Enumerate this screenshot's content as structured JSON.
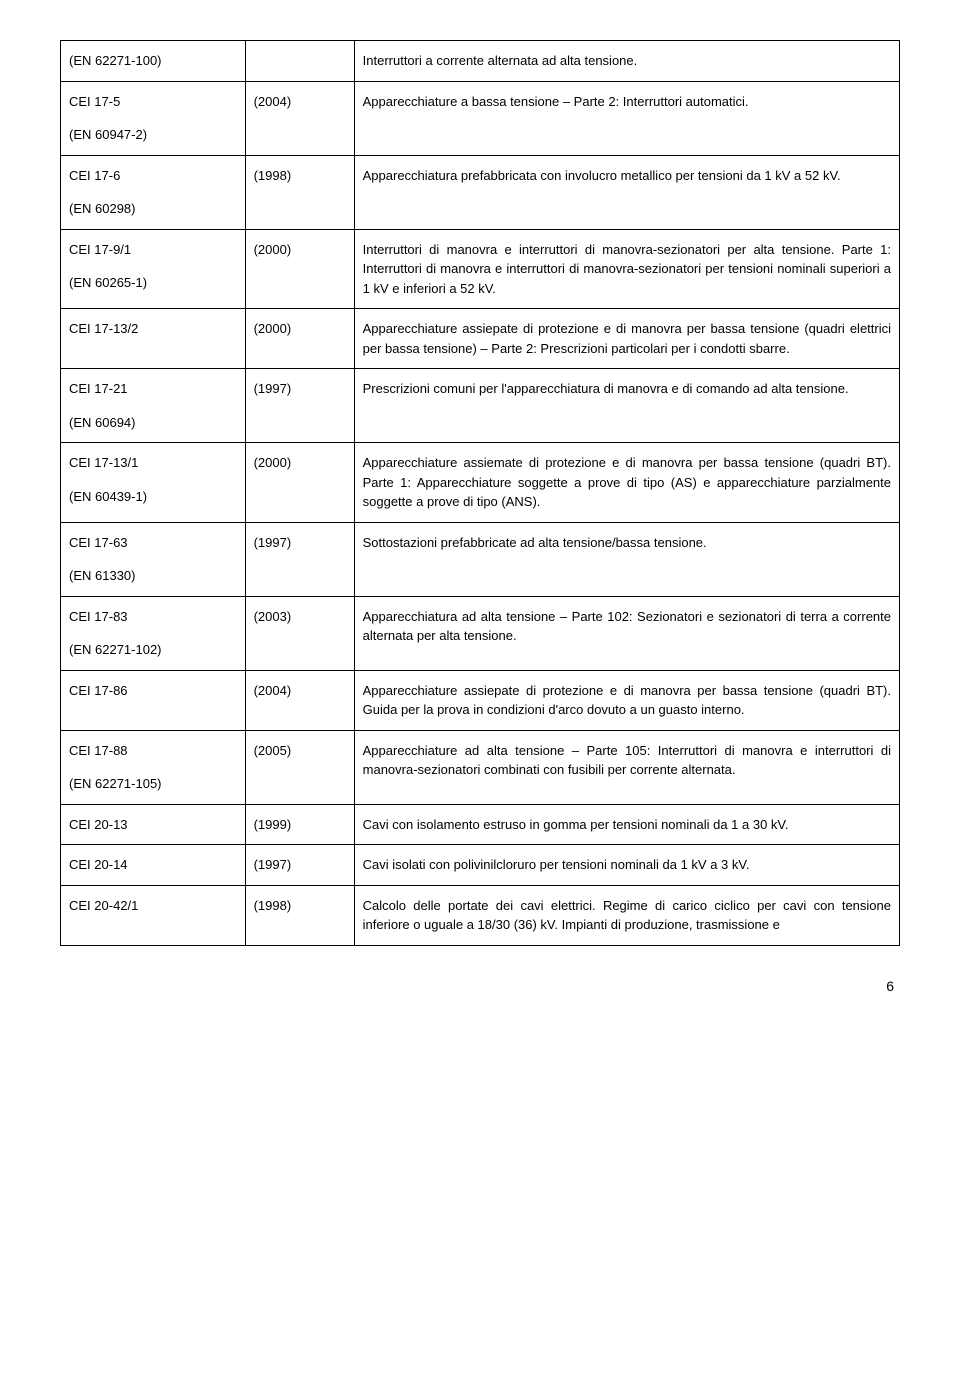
{
  "page_number": "6",
  "rows": [
    {
      "code1": "(EN 62271-100)",
      "code2": "",
      "year": "",
      "desc": "Interruttori a corrente alternata ad alta tensione."
    },
    {
      "code1": "CEI 17-5",
      "code2": "(EN 60947-2)",
      "year": "(2004)",
      "desc": "Apparecchiature a bassa tensione – Parte 2: Interruttori automatici."
    },
    {
      "code1": "CEI 17-6",
      "code2": "(EN 60298)",
      "year": "(1998)",
      "desc": "Apparecchiatura prefabbricata con involucro metallico per tensioni da 1 kV a 52 kV."
    },
    {
      "code1": "CEI 17-9/1",
      "code2": "(EN 60265-1)",
      "year": "(2000)",
      "desc": "Interruttori di manovra e interruttori di manovra-sezionatori per alta tensione. Parte 1: Interruttori di manovra e interruttori di manovra-sezionatori per tensioni nominali superiori a 1 kV e inferiori a 52 kV."
    },
    {
      "code1": "CEI 17-13/2",
      "code2": "",
      "year": "(2000)",
      "desc": "Apparecchiature assiepate di protezione e di manovra per bassa tensione (quadri elettrici per bassa tensione) – Parte 2: Prescrizioni particolari per i condotti sbarre."
    },
    {
      "code1": "CEI 17-21",
      "code2": "(EN 60694)",
      "year": "(1997)",
      "desc": "Prescrizioni comuni per l'apparecchiatura di manovra e di comando ad alta tensione."
    },
    {
      "code1": "CEI 17-13/1",
      "code2": "(EN 60439-1)",
      "year": "(2000)",
      "desc": "Apparecchiature assiemate di protezione e di manovra per bassa tensione (quadri BT). Parte 1: Apparecchiature soggette a prove di tipo (AS) e apparecchiature parzialmente soggette a prove di tipo (ANS)."
    },
    {
      "code1": "CEI 17-63",
      "code2": "(EN 61330)",
      "year": "(1997)",
      "desc": "Sottostazioni prefabbricate ad alta tensione/bassa tensione."
    },
    {
      "code1": "CEI 17-83",
      "code2": "(EN 62271-102)",
      "year": "(2003)",
      "desc": "Apparecchiatura ad alta tensione – Parte 102: Sezionatori e sezionatori di terra a corrente alternata per alta tensione."
    },
    {
      "code1": "CEI 17-86",
      "code2": "",
      "year": "(2004)",
      "desc": "Apparecchiature assiepate di protezione e di manovra per bassa tensione (quadri BT). Guida per la prova in condizioni d'arco dovuto a un guasto interno."
    },
    {
      "code1": "CEI 17-88",
      "code2": "(EN 62271-105)",
      "year": "(2005)",
      "desc": "Apparecchiature ad alta tensione – Parte 105: Interruttori di manovra e interruttori di manovra-sezionatori combinati con fusibili per corrente alternata."
    },
    {
      "code1": "CEI 20-13",
      "code2": "",
      "year": "(1999)",
      "desc": "Cavi con isolamento estruso in gomma per tensioni nominali da 1 a 30 kV."
    },
    {
      "code1": "CEI 20-14",
      "code2": "",
      "year": "(1997)",
      "desc": "Cavi isolati con polivinilcloruro per tensioni nominali da 1 kV a 3 kV."
    },
    {
      "code1": "CEI 20-42/1",
      "code2": "",
      "year": "(1998)",
      "desc": "Calcolo delle portate dei cavi elettrici. Regime di carico ciclico per cavi con tensione inferiore o uguale a 18/30 (36) kV. Impianti di produzione, trasmissione e"
    }
  ]
}
